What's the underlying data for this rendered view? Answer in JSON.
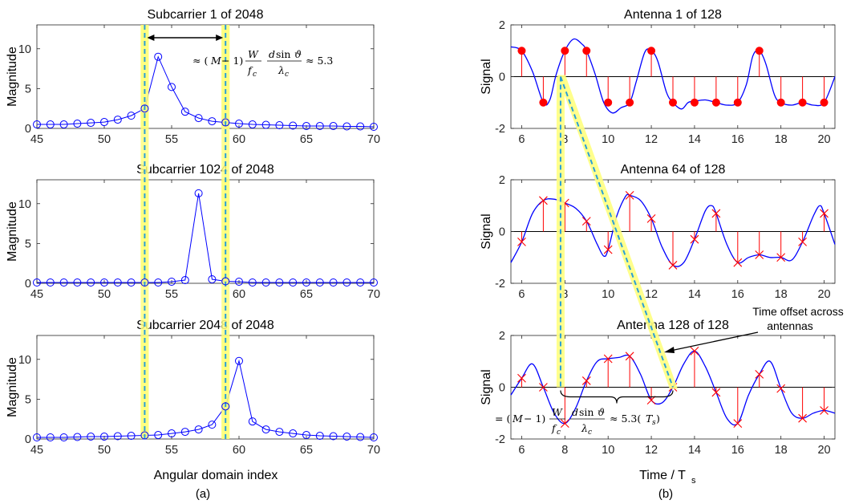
{
  "colors": {
    "blue": "#0000ff",
    "red": "#ff0000",
    "highlight": "#ffff80",
    "guide": "#2a9fd6",
    "axis": "#262626",
    "zero_line": "#000000"
  },
  "figure": {
    "caption_a": "(a)",
    "caption_b": "(b)",
    "shared_xlabel_a": "Angular domain index",
    "shared_xlabel_b_main": "Time / T",
    "shared_xlabel_b_sub": "s",
    "formula_a": "≈ (M − 1) (W/f_c) (d sin ϑ / λ_c) ≈ 5.3",
    "formula_b": "= (M − 1) (W/f_c) (d sin ϑ / λ_c) ≈ 5.3(T_s)",
    "annotation_b_line1": "Time offset across",
    "annotation_b_line2": "antennas"
  },
  "chart_data": [
    {
      "type": "stem",
      "title": "Subcarrier 1 of 2048",
      "xlabel": "",
      "ylabel": "Magnitude",
      "xlim": [
        45,
        70
      ],
      "ylim": [
        0,
        13
      ],
      "xticks": [
        45,
        50,
        55,
        60,
        65,
        70
      ],
      "yticks": [
        0,
        5,
        10
      ],
      "marker": "circle",
      "x": [
        45,
        46,
        47,
        48,
        49,
        50,
        51,
        52,
        53,
        54,
        55,
        56,
        57,
        58,
        59,
        60,
        61,
        62,
        63,
        64,
        65,
        66,
        67,
        68,
        69,
        70
      ],
      "values": [
        0.5,
        0.5,
        0.5,
        0.6,
        0.7,
        0.8,
        1.1,
        1.6,
        2.5,
        9.0,
        5.2,
        2.1,
        1.3,
        0.9,
        0.75,
        0.6,
        0.5,
        0.45,
        0.4,
        0.35,
        0.3,
        0.3,
        0.3,
        0.25,
        0.25,
        0.2
      ],
      "highlight_x": [
        53,
        59
      ]
    },
    {
      "type": "stem",
      "title": "Subcarrier 1024 of 2048",
      "xlabel": "",
      "ylabel": "Magnitude",
      "xlim": [
        45,
        70
      ],
      "ylim": [
        0,
        13
      ],
      "xticks": [
        45,
        50,
        55,
        60,
        65,
        70
      ],
      "yticks": [
        0,
        5,
        10
      ],
      "marker": "circle",
      "x": [
        45,
        46,
        47,
        48,
        49,
        50,
        51,
        52,
        53,
        54,
        55,
        56,
        57,
        58,
        59,
        60,
        61,
        62,
        63,
        64,
        65,
        66,
        67,
        68,
        69,
        70
      ],
      "values": [
        0.1,
        0.1,
        0.1,
        0.1,
        0.1,
        0.1,
        0.1,
        0.1,
        0.1,
        0.1,
        0.2,
        0.4,
        11.3,
        0.5,
        0.25,
        0.2,
        0.1,
        0.1,
        0.1,
        0.1,
        0.1,
        0.1,
        0.1,
        0.1,
        0.1,
        0.1
      ],
      "highlight_x": [
        53,
        59
      ]
    },
    {
      "type": "stem",
      "title": "Subcarrier 2048 of 2048",
      "xlabel": "Angular domain index",
      "ylabel": "Magnitude",
      "xlim": [
        45,
        70
      ],
      "ylim": [
        0,
        13
      ],
      "xticks": [
        45,
        50,
        55,
        60,
        65,
        70
      ],
      "yticks": [
        0,
        5,
        10
      ],
      "marker": "circle",
      "x": [
        45,
        46,
        47,
        48,
        49,
        50,
        51,
        52,
        53,
        54,
        55,
        56,
        57,
        58,
        59,
        60,
        61,
        62,
        63,
        64,
        65,
        66,
        67,
        68,
        69,
        70
      ],
      "values": [
        0.2,
        0.2,
        0.2,
        0.25,
        0.3,
        0.3,
        0.35,
        0.4,
        0.45,
        0.5,
        0.7,
        0.9,
        1.2,
        1.8,
        4.1,
        9.8,
        2.2,
        1.2,
        0.9,
        0.7,
        0.5,
        0.4,
        0.35,
        0.3,
        0.25,
        0.2
      ],
      "highlight_x": [
        53,
        59
      ]
    },
    {
      "type": "stem",
      "title": "Antenna 1 of 128",
      "xlabel": "",
      "ylabel": "Signal",
      "xlim": [
        5.5,
        20.5
      ],
      "ylim": [
        -2,
        2
      ],
      "xticks": [
        6,
        8,
        10,
        12,
        14,
        16,
        18,
        20
      ],
      "yticks": [
        -2,
        0,
        2
      ],
      "marker": "dot",
      "x": [
        6,
        7,
        8,
        9,
        10,
        11,
        12,
        13,
        14,
        15,
        16,
        17,
        18,
        19,
        20
      ],
      "values": [
        1,
        -1,
        1,
        1,
        -1,
        -1,
        1,
        -1,
        -1,
        -1,
        -1,
        1,
        -1,
        -1,
        -1
      ],
      "curve": [
        [
          5.5,
          1.15
        ],
        [
          6,
          1.0
        ],
        [
          6.5,
          0.2
        ],
        [
          7,
          -1.0
        ],
        [
          7.3,
          -0.9
        ],
        [
          7.6,
          0.1
        ],
        [
          8,
          1.0
        ],
        [
          8.4,
          1.45
        ],
        [
          8.8,
          1.25
        ],
        [
          9,
          1.0
        ],
        [
          9.4,
          0.1
        ],
        [
          9.8,
          -1.0
        ],
        [
          10.2,
          -1.4
        ],
        [
          10.6,
          -1.2
        ],
        [
          11,
          -1.0
        ],
        [
          11.3,
          -0.2
        ],
        [
          11.7,
          0.95
        ],
        [
          12,
          1.0
        ],
        [
          12.3,
          0.6
        ],
        [
          12.7,
          -0.6
        ],
        [
          13,
          -1.0
        ],
        [
          13.4,
          -1.25
        ],
        [
          13.7,
          -1.0
        ],
        [
          14,
          -0.95
        ],
        [
          14.5,
          -0.9
        ],
        [
          15,
          -1.0
        ],
        [
          15.5,
          -1.1
        ],
        [
          16,
          -1.0
        ],
        [
          16.4,
          -0.3
        ],
        [
          16.7,
          0.8
        ],
        [
          17,
          1.0
        ],
        [
          17.3,
          0.5
        ],
        [
          17.7,
          -0.7
        ],
        [
          18,
          -1.0
        ],
        [
          18.5,
          -1.1
        ],
        [
          19,
          -1.0
        ],
        [
          19.5,
          -1.1
        ],
        [
          20,
          -1.0
        ],
        [
          20.5,
          0.0
        ]
      ]
    },
    {
      "type": "stem",
      "title": "Antenna 64 of 128",
      "xlabel": "",
      "ylabel": "Signal",
      "xlim": [
        5.5,
        20.5
      ],
      "ylim": [
        -2,
        2
      ],
      "xticks": [
        6,
        8,
        10,
        12,
        14,
        16,
        18,
        20
      ],
      "yticks": [
        -2,
        0,
        2
      ],
      "marker": "cross",
      "x": [
        6,
        7,
        8,
        9,
        10,
        11,
        12,
        13,
        14,
        15,
        16,
        17,
        18,
        19,
        20
      ],
      "values": [
        -0.4,
        1.2,
        1.1,
        0.4,
        -0.7,
        1.4,
        0.5,
        -1.3,
        -0.3,
        0.7,
        -1.2,
        -0.9,
        -1.0,
        -0.4,
        0.7
      ],
      "curve": [
        [
          5.5,
          -1.2
        ],
        [
          6,
          -0.4
        ],
        [
          6.5,
          0.7
        ],
        [
          7,
          1.2
        ],
        [
          7.5,
          1.25
        ],
        [
          8,
          1.1
        ],
        [
          8.5,
          0.9
        ],
        [
          9,
          0.4
        ],
        [
          9.5,
          -0.5
        ],
        [
          9.8,
          -0.95
        ],
        [
          10,
          -0.7
        ],
        [
          10.4,
          0.6
        ],
        [
          10.8,
          1.35
        ],
        [
          11,
          1.4
        ],
        [
          11.5,
          1.2
        ],
        [
          12,
          0.5
        ],
        [
          12.5,
          -0.6
        ],
        [
          13,
          -1.3
        ],
        [
          13.5,
          -1.2
        ],
        [
          14,
          -0.3
        ],
        [
          14.5,
          0.8
        ],
        [
          14.8,
          1.0
        ],
        [
          15,
          0.7
        ],
        [
          15.5,
          -0.5
        ],
        [
          16,
          -1.2
        ],
        [
          16.5,
          -1.0
        ],
        [
          17,
          -0.9
        ],
        [
          17.5,
          -1.0
        ],
        [
          18,
          -1.0
        ],
        [
          18.5,
          -1.1
        ],
        [
          19,
          -0.4
        ],
        [
          19.5,
          0.6
        ],
        [
          19.8,
          1.0
        ],
        [
          20,
          0.7
        ],
        [
          20.5,
          -0.5
        ]
      ]
    },
    {
      "type": "stem",
      "title": "Antenna 128 of 128",
      "xlabel": "Time / Ts",
      "ylabel": "Signal",
      "xlim": [
        5.5,
        20.5
      ],
      "ylim": [
        -2,
        2
      ],
      "xticks": [
        6,
        8,
        10,
        12,
        14,
        16,
        18,
        20
      ],
      "yticks": [
        -2,
        0,
        2
      ],
      "marker": "cross",
      "x": [
        6,
        7,
        8,
        9,
        10,
        11,
        12,
        13,
        14,
        15,
        16,
        17,
        18,
        19,
        20
      ],
      "values": [
        0.35,
        0.0,
        -1.4,
        0.25,
        1.1,
        1.2,
        -0.5,
        0.0,
        1.4,
        -0.2,
        -1.4,
        0.5,
        -0.05,
        -1.2,
        -0.9
      ],
      "curve": [
        [
          5.5,
          -0.3
        ],
        [
          6,
          0.35
        ],
        [
          6.5,
          0.9
        ],
        [
          7,
          0.0
        ],
        [
          7.5,
          -1.0
        ],
        [
          8,
          -1.4
        ],
        [
          8.5,
          -0.8
        ],
        [
          9,
          0.25
        ],
        [
          9.5,
          1.0
        ],
        [
          10,
          1.1
        ],
        [
          10.5,
          1.15
        ],
        [
          11,
          1.2
        ],
        [
          11.5,
          0.5
        ],
        [
          12,
          -0.5
        ],
        [
          12.5,
          -0.6
        ],
        [
          13,
          0.0
        ],
        [
          13.5,
          0.9
        ],
        [
          14,
          1.4
        ],
        [
          14.5,
          0.8
        ],
        [
          15,
          -0.2
        ],
        [
          15.5,
          -1.2
        ],
        [
          16,
          -1.4
        ],
        [
          16.5,
          -0.3
        ],
        [
          17,
          0.5
        ],
        [
          17.5,
          1.0
        ],
        [
          18,
          -0.05
        ],
        [
          18.5,
          -1.0
        ],
        [
          19,
          -1.2
        ],
        [
          19.5,
          -1.0
        ],
        [
          20,
          -0.9
        ],
        [
          20.5,
          -1.0
        ]
      ]
    }
  ]
}
